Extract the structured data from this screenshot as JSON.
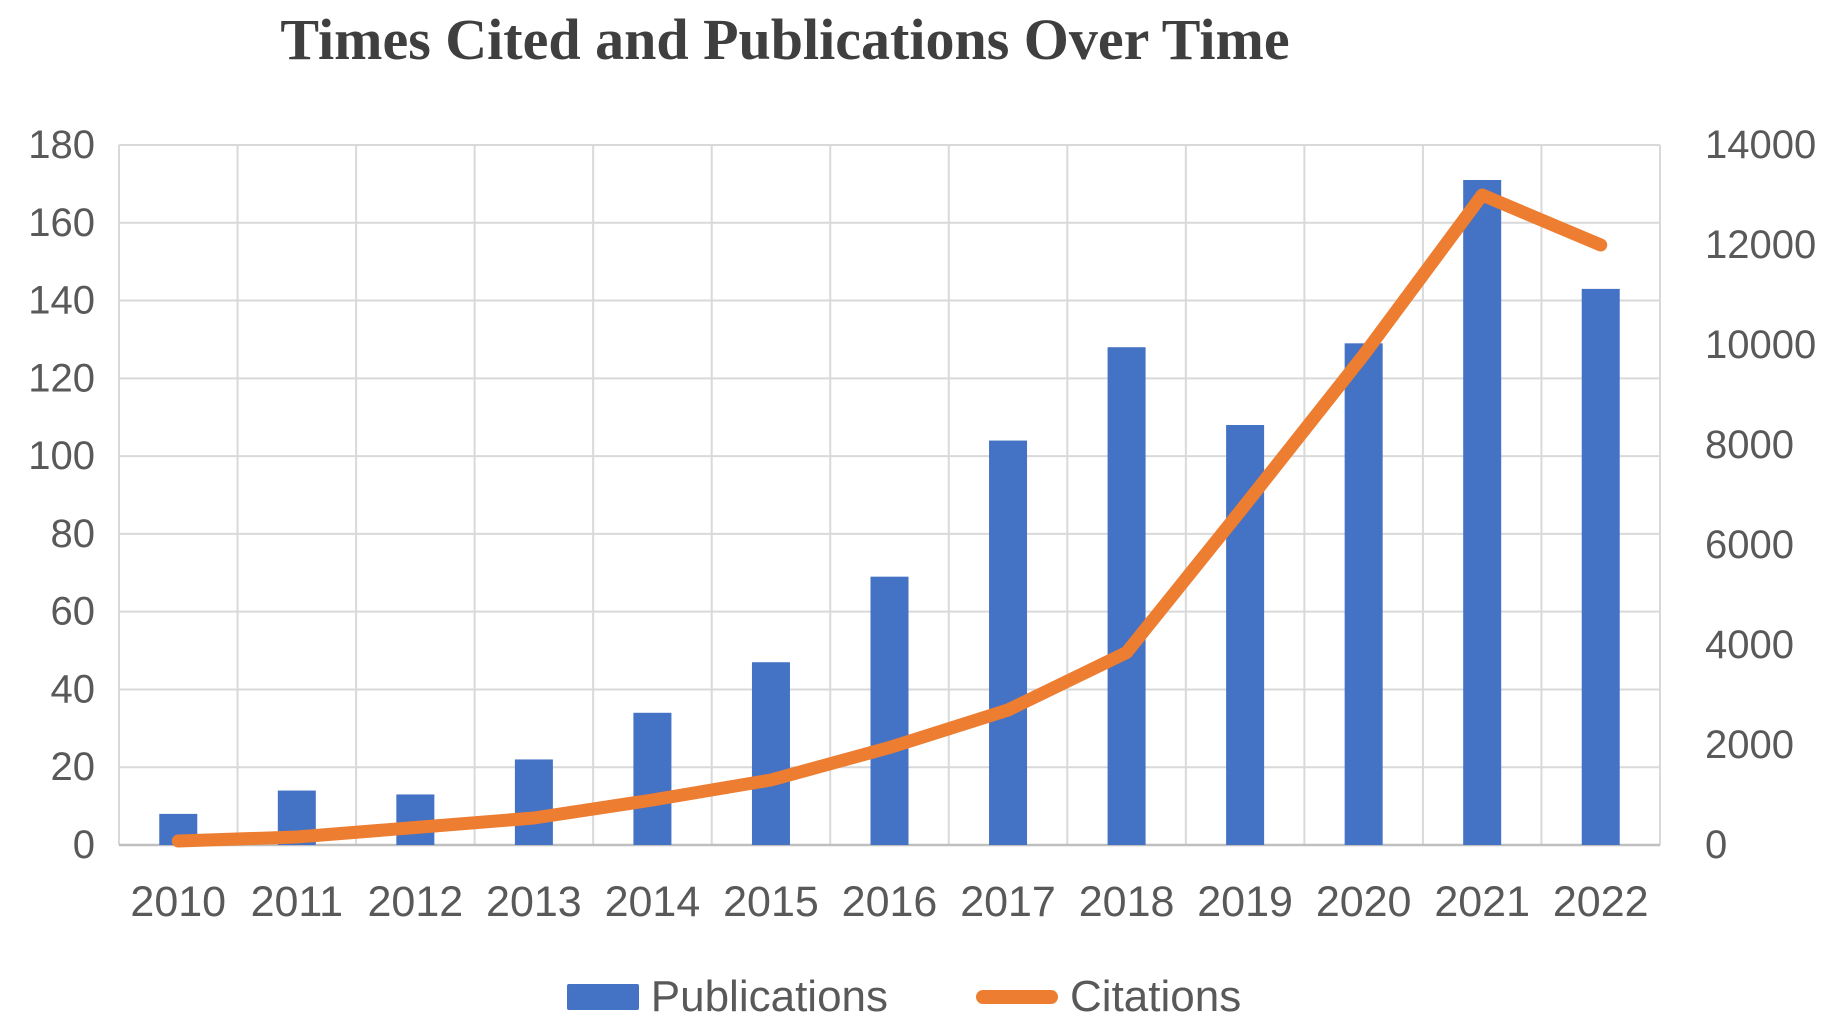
{
  "chart": {
    "title": "Times Cited and Publications Over Time",
    "legend": {
      "publications_label": "Publications",
      "citations_label": "Citations"
    }
  },
  "chart_data": {
    "type": "bar",
    "subtype": "combo-bar-line-dual-axis",
    "title": "Times Cited and Publications Over Time",
    "categories": [
      "2010",
      "2011",
      "2012",
      "2013",
      "2014",
      "2015",
      "2016",
      "2017",
      "2018",
      "2019",
      "2020",
      "2021",
      "2022"
    ],
    "series": [
      {
        "name": "Publications",
        "type": "bar",
        "axis": "left",
        "color": "#4472C4",
        "values": [
          8,
          14,
          13,
          22,
          34,
          47,
          69,
          104,
          128,
          108,
          129,
          171,
          143
        ]
      },
      {
        "name": "Citations",
        "type": "line",
        "axis": "right",
        "color": "#ED7D31",
        "values": [
          80,
          160,
          350,
          540,
          900,
          1300,
          1950,
          2700,
          3850,
          6800,
          9800,
          13000,
          12000
        ]
      }
    ],
    "left_axis": {
      "min": 0,
      "max": 180,
      "step": 20,
      "tick_labels": [
        "0",
        "20",
        "40",
        "60",
        "80",
        "100",
        "120",
        "140",
        "160",
        "180"
      ]
    },
    "right_axis": {
      "min": 0,
      "max": 14000,
      "step": 2000,
      "tick_labels": [
        "0",
        "2000",
        "4000",
        "6000",
        "8000",
        "10000",
        "12000",
        "14000"
      ]
    },
    "grid": true,
    "legend_position": "bottom",
    "xlabel": "",
    "ylabel": ""
  },
  "colors": {
    "bar_fill": "#4472C4",
    "line_stroke": "#ED7D31",
    "gridline": "#D9D9D9",
    "axis_line": "#BFBFBF",
    "tick_text": "#595959",
    "title_text": "#3f3f3f"
  }
}
